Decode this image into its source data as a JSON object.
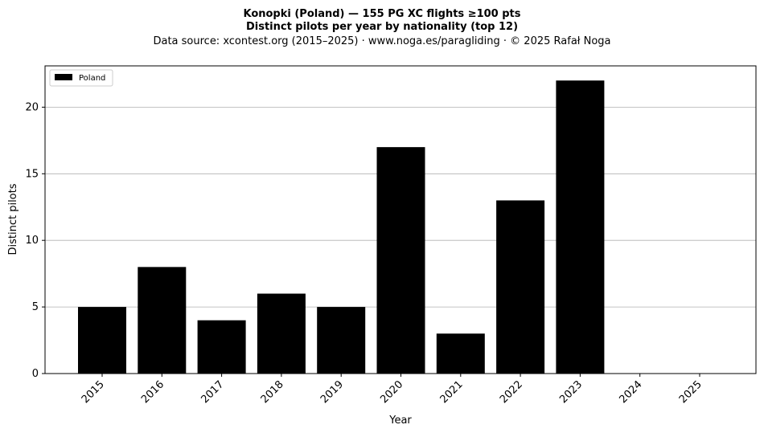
{
  "chart_data": {
    "type": "bar",
    "title": "Konopki (Poland)  —  155 PG XC flights ≥100 pts",
    "subtitle": "Distinct pilots per year by nationality (top 12)",
    "source": "Data source: xcontest.org (2015–2025)  ·  www.noga.es/paragliding  ·  © 2025 Rafał Noga",
    "xlabel": "Year",
    "ylabel": "Distinct pilots",
    "categories": [
      "2015",
      "2016",
      "2017",
      "2018",
      "2019",
      "2020",
      "2021",
      "2022",
      "2023",
      "2024",
      "2025"
    ],
    "series": [
      {
        "name": "Poland",
        "values": [
          5,
          8,
          4,
          6,
          5,
          17,
          3,
          13,
          22,
          0,
          0
        ],
        "color": "#000000"
      }
    ],
    "ylim": [
      0,
      23.1
    ],
    "yticks": [
      0,
      5,
      10,
      15,
      20
    ],
    "grid": "y",
    "legend": "top-left"
  }
}
